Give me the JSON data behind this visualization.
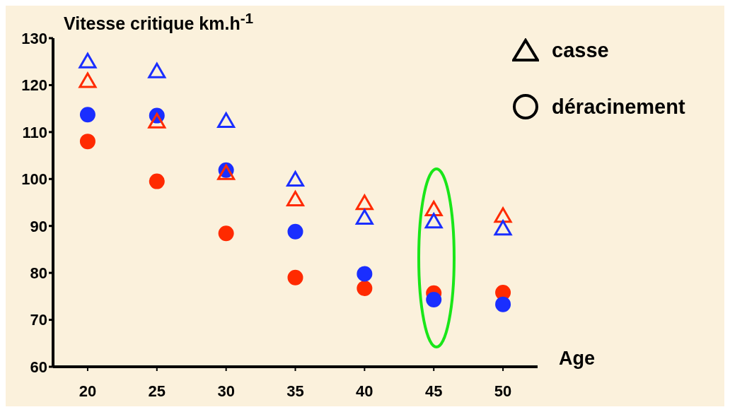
{
  "chart_data": {
    "type": "scatter",
    "ylabel": "Vitesse critique km.h$^{-1}$",
    "xlabel": "Age",
    "categories": [
      "20",
      "25",
      "30",
      "35",
      "40",
      "45",
      "50"
    ],
    "series": [
      {
        "marker": "triangle",
        "color": "#1a2eff",
        "values": [
          125,
          122.9,
          112.3,
          99.8,
          91.7,
          90.9,
          89.4
        ]
      },
      {
        "marker": "triangle",
        "color": "#ff2a00",
        "values": [
          120.8,
          112.2,
          101.2,
          95.6,
          94.8,
          93.5,
          92.1
        ]
      },
      {
        "marker": "circle",
        "color": "#1a2eff",
        "values": [
          113.7,
          113.5,
          101.9,
          88.8,
          79.8,
          74.3,
          73.3
        ]
      },
      {
        "marker": "circle",
        "color": "#ff2a00",
        "values": [
          108,
          99.5,
          88.4,
          79,
          76.7,
          75.7,
          75.8
        ]
      }
    ],
    "ylim": [
      60,
      130
    ],
    "yticks": [
      60,
      70,
      80,
      90,
      100,
      110,
      120,
      130
    ],
    "grid": false,
    "annotations": [
      "casse",
      "déracinement"
    ]
  }
}
